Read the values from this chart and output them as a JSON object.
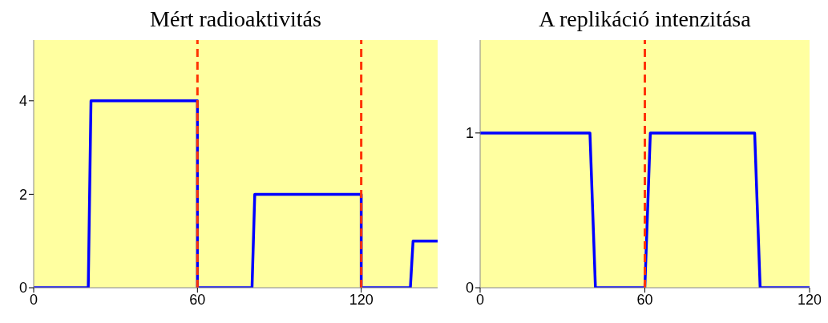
{
  "chart_data": [
    {
      "type": "line",
      "title": "Mért radioaktivitás",
      "x": [
        0,
        20,
        21,
        60,
        60,
        80,
        81,
        120,
        120,
        138,
        139,
        148
      ],
      "series": [
        {
          "color": "#0000ff",
          "values": [
            0,
            0,
            4,
            4,
            0,
            0,
            2,
            2,
            0,
            0,
            1,
            1
          ]
        }
      ],
      "xlim": [
        0,
        148
      ],
      "xticks": [
        0,
        60,
        120
      ],
      "ylim": [
        0,
        5.3
      ],
      "yticks": [
        0,
        2,
        4
      ],
      "grid": false,
      "legend": false,
      "marker": "none",
      "line_style": "solid",
      "ref_lines": [
        {
          "axis": "x",
          "value": 60,
          "color": "#ff3300",
          "line_style": "dashed"
        },
        {
          "axis": "x",
          "value": 120,
          "color": "#ff3300",
          "line_style": "dashed"
        }
      ]
    },
    {
      "type": "line",
      "title": "A replikáció intenzitása",
      "x": [
        0,
        40,
        42,
        60,
        62,
        100,
        102,
        120
      ],
      "series": [
        {
          "color": "#0000ff",
          "values": [
            1,
            1,
            0,
            0,
            1,
            1,
            0,
            0
          ]
        }
      ],
      "xlim": [
        0,
        120
      ],
      "xticks": [
        0,
        60,
        120
      ],
      "ylim": [
        0,
        1.6
      ],
      "yticks": [
        0,
        1
      ],
      "grid": false,
      "legend": false,
      "marker": "none",
      "line_style": "solid",
      "ref_lines": [
        {
          "axis": "x",
          "value": 60,
          "color": "#ff3300",
          "line_style": "dashed"
        }
      ]
    }
  ]
}
